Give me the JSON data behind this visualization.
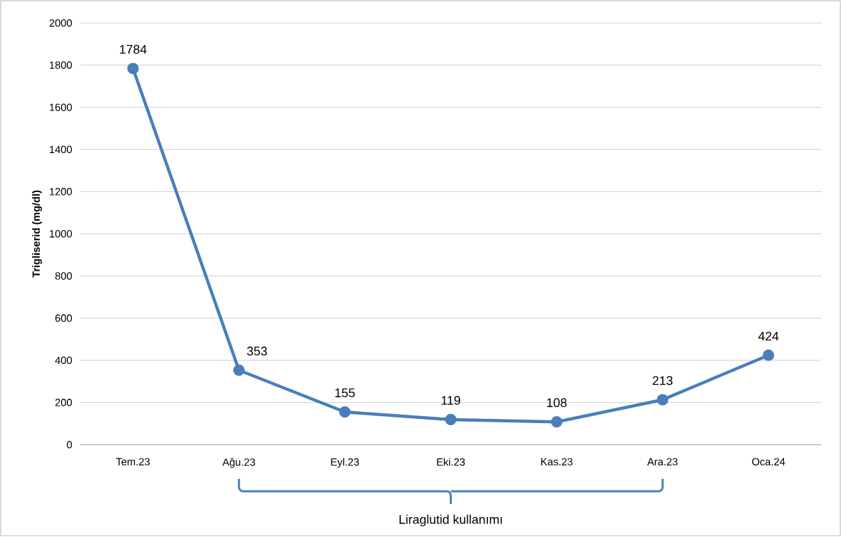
{
  "chart_data": {
    "type": "line",
    "ylabel": "Trigliserid  (mg/dl)",
    "categories": [
      "Tem.23",
      "Ağu.23",
      "Eyl.23",
      "Eki.23",
      "Kas.23",
      "Ara.23",
      "Oca.24"
    ],
    "series": [
      {
        "color": "#4a7ebb",
        "values": [
          1784,
          353,
          155,
          119,
          108,
          213,
          424
        ]
      }
    ],
    "ylim": [
      0,
      2000
    ],
    "yticks": [
      0,
      200,
      400,
      600,
      800,
      1000,
      1200,
      1400,
      1600,
      1800,
      2000
    ],
    "grid": "y",
    "marker": "circle",
    "line_style": "solid",
    "data_labels": true,
    "annotations": [
      "Liraglutid kullanımı"
    ]
  }
}
